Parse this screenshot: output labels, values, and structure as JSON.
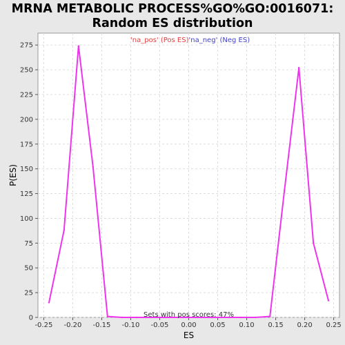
{
  "chart_data": {
    "type": "line",
    "title_line1": "MRNA METABOLIC PROCESS%GO%GO:0016071:",
    "title_line2": "Random ES distribution",
    "xlabel": "ES",
    "ylabel": "P(ES)",
    "xlim": [
      -0.26,
      0.26
    ],
    "ylim": [
      0,
      287
    ],
    "xticks": [
      "-0.25",
      "-0.20",
      "-0.15",
      "-0.10",
      "-0.05",
      "0.00",
      "0.05",
      "0.10",
      "0.15",
      "0.20",
      "0.25"
    ],
    "xtick_values": [
      -0.25,
      -0.2,
      -0.15,
      -0.1,
      -0.05,
      0.0,
      0.05,
      0.1,
      0.15,
      0.2,
      0.25
    ],
    "yticks": [
      "0",
      "25",
      "50",
      "75",
      "100",
      "125",
      "150",
      "175",
      "200",
      "225",
      "250",
      "275"
    ],
    "ytick_values": [
      0,
      25,
      50,
      75,
      100,
      125,
      150,
      175,
      200,
      225,
      250,
      275
    ],
    "grid": true,
    "legend": {
      "pos_label": "'na_pos' (Pos ES)",
      "neg_label": "'na_neg' (Neg ES)",
      "pos_color": "#e04040",
      "neg_color": "#4040d0",
      "placement": "top-center"
    },
    "series": [
      {
        "color": "#ee33ee",
        "x": [
          -0.241,
          -0.215,
          -0.19,
          -0.165,
          -0.14,
          -0.115,
          -0.09,
          -0.065,
          -0.04,
          0.0,
          0.04,
          0.09,
          0.115,
          0.14,
          0.165,
          0.19,
          0.215,
          0.241
        ],
        "y": [
          15,
          88,
          274,
          152,
          1,
          0,
          0,
          0,
          0,
          0,
          0,
          0,
          0,
          1,
          128,
          252,
          75,
          17
        ]
      }
    ],
    "annotation": "Sets with pos scores: 47%"
  }
}
